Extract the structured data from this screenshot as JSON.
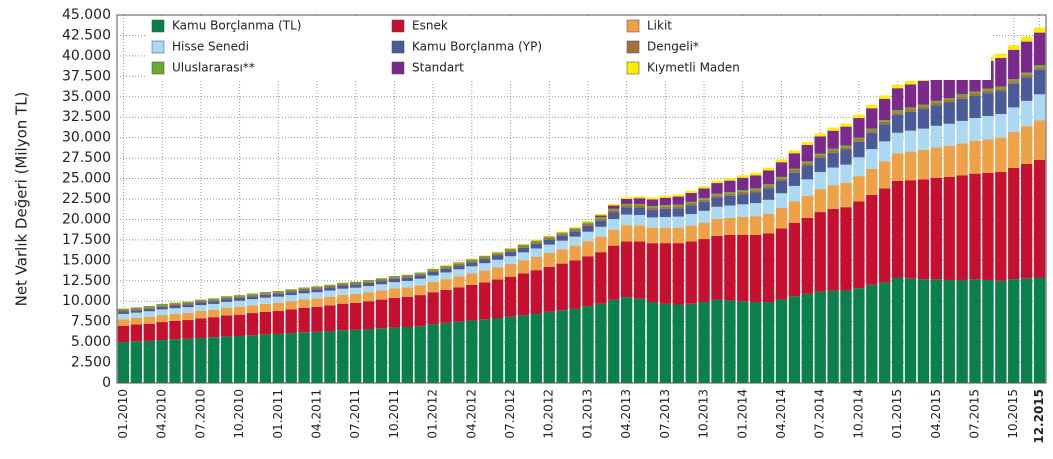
{
  "chart_data": {
    "type": "stacked_bar",
    "ylabel": "Net Varlık Değeri (Milyon TL)",
    "categories": [
      "01.2010",
      null,
      null,
      "04.2010",
      null,
      null,
      "07.2010",
      null,
      null,
      "10.2010",
      null,
      null,
      "01.2011",
      null,
      null,
      "04.2011",
      null,
      null,
      "07.2011",
      null,
      null,
      "10.2011",
      null,
      null,
      "01.2012",
      null,
      null,
      "04.2012",
      null,
      null,
      "07.2012",
      null,
      null,
      "10.2012",
      null,
      null,
      "01.2013",
      null,
      null,
      "04.2013",
      null,
      null,
      "07.2013",
      null,
      null,
      "10.2013",
      null,
      null,
      "01.2014",
      null,
      null,
      "04.2014",
      null,
      null,
      "07.2014",
      null,
      null,
      "10.2014",
      null,
      null,
      "01.2015",
      null,
      null,
      "04.2015",
      null,
      null,
      "07.2015",
      null,
      null,
      "10.2015",
      null,
      "12.2015"
    ],
    "ylim": [
      0,
      45000
    ],
    "yticks": [
      0,
      {
        "value": 2500,
        "label": "2.500"
      },
      {
        "value": 5000,
        "label": "5.000"
      },
      {
        "value": 7500,
        "label": "7.500"
      },
      {
        "value": 10000,
        "label": "10.000"
      },
      {
        "value": 12500,
        "label": "12.500"
      },
      {
        "value": 15000,
        "label": "15.000"
      },
      {
        "value": 17500,
        "label": "17.500"
      },
      {
        "value": 20000,
        "label": "20.000"
      },
      {
        "value": 22500,
        "label": "22.500"
      },
      {
        "value": 25000,
        "label": "25.000"
      },
      {
        "value": 27500,
        "label": "27.500"
      },
      {
        "value": 30000,
        "label": "30.000"
      },
      {
        "value": 32500,
        "label": "32.500"
      },
      {
        "value": 35000,
        "label": "35.000"
      },
      {
        "value": 37500,
        "label": "37.500"
      },
      {
        "value": 40000,
        "label": "40.000"
      },
      {
        "value": 42500,
        "label": "42.500"
      },
      {
        "value": 45000,
        "label": "45.000"
      }
    ],
    "grid": true,
    "series": [
      {
        "name": "Kamu Borçlanma (TL)",
        "color": "#0b7f4c",
        "values": [
          5000,
          5100,
          5150,
          5250,
          5350,
          5400,
          5500,
          5600,
          5700,
          5750,
          5850,
          5950,
          6000,
          6100,
          6200,
          6250,
          6350,
          6450,
          6500,
          6600,
          6700,
          6800,
          6850,
          6950,
          7200,
          7350,
          7500,
          7650,
          7800,
          7950,
          8100,
          8300,
          8500,
          8700,
          8900,
          9100,
          9400,
          9700,
          10200,
          10500,
          10300,
          9900,
          9700,
          9600,
          9700,
          9900,
          10200,
          10100,
          10000,
          9900,
          9900,
          10200,
          10600,
          10900,
          11200,
          11300,
          11300,
          11600,
          12000,
          12300,
          12900,
          12800,
          12700,
          12700,
          12600,
          12600,
          12700,
          12600,
          12500,
          12700,
          12800,
          12900
        ]
      },
      {
        "name": "Esnek",
        "color": "#c6102f",
        "values": [
          2000,
          2050,
          2100,
          2200,
          2250,
          2300,
          2400,
          2450,
          2550,
          2600,
          2700,
          2750,
          2800,
          2900,
          3000,
          3050,
          3150,
          3250,
          3300,
          3400,
          3500,
          3600,
          3700,
          3800,
          3900,
          4050,
          4200,
          4350,
          4500,
          4700,
          4900,
          5100,
          5300,
          5500,
          5700,
          5900,
          6100,
          6300,
          6600,
          6800,
          7000,
          7200,
          7400,
          7500,
          7600,
          7700,
          7800,
          8000,
          8100,
          8200,
          8400,
          8700,
          9000,
          9300,
          9700,
          10000,
          10200,
          10600,
          11000,
          11500,
          11800,
          12000,
          12200,
          12400,
          12600,
          12800,
          12900,
          13100,
          13300,
          13600,
          14000,
          14400
        ]
      },
      {
        "name": "Likit",
        "color": "#eea146",
        "values": [
          800,
          800,
          820,
          850,
          850,
          870,
          900,
          900,
          920,
          950,
          950,
          980,
          1000,
          1000,
          1020,
          1050,
          1050,
          1080,
          1100,
          1100,
          1120,
          1150,
          1150,
          1200,
          1250,
          1300,
          1350,
          1400,
          1450,
          1500,
          1550,
          1600,
          1650,
          1700,
          1750,
          1800,
          1850,
          1900,
          1950,
          2000,
          1950,
          1900,
          1900,
          1900,
          1950,
          2000,
          2050,
          2100,
          2200,
          2300,
          2400,
          2500,
          2600,
          2700,
          2800,
          2900,
          3000,
          3100,
          3200,
          3300,
          3400,
          3500,
          3600,
          3700,
          3800,
          3900,
          4000,
          4100,
          4200,
          4400,
          4600,
          4800
        ]
      },
      {
        "name": "Hisse Senedi",
        "color": "#acd9f2",
        "values": [
          650,
          650,
          700,
          700,
          700,
          700,
          720,
          720,
          750,
          750,
          750,
          750,
          750,
          750,
          750,
          750,
          750,
          750,
          750,
          750,
          750,
          780,
          780,
          800,
          800,
          820,
          850,
          870,
          900,
          920,
          950,
          970,
          1000,
          1020,
          1050,
          1100,
          1150,
          1200,
          1300,
          1300,
          1300,
          1250,
          1300,
          1350,
          1400,
          1450,
          1500,
          1500,
          1550,
          1600,
          1700,
          1800,
          1900,
          2000,
          2100,
          2150,
          2200,
          2300,
          2400,
          2450,
          2500,
          2550,
          2600,
          2650,
          2700,
          2750,
          2800,
          2850,
          2900,
          3000,
          3100,
          3200
        ]
      },
      {
        "name": "Kamu Borçlanma (YP)",
        "color": "#4a5b97",
        "values": [
          300,
          300,
          300,
          310,
          320,
          320,
          330,
          330,
          340,
          340,
          350,
          350,
          350,
          360,
          360,
          370,
          370,
          380,
          380,
          390,
          390,
          400,
          400,
          410,
          420,
          440,
          460,
          480,
          500,
          520,
          540,
          560,
          580,
          600,
          620,
          650,
          700,
          750,
          800,
          850,
          900,
          950,
          1000,
          1000,
          1050,
          1100,
          1150,
          1200,
          1250,
          1300,
          1400,
          1500,
          1600,
          1700,
          1750,
          1800,
          1850,
          1900,
          2000,
          2100,
          2200,
          2300,
          2400,
          2500,
          2600,
          2700,
          2700,
          2800,
          2800,
          2900,
          2900,
          3000
        ]
      },
      {
        "name": "Dengeli*",
        "color": "#a3703f",
        "values": [
          200,
          200,
          200,
          200,
          200,
          200,
          200,
          200,
          200,
          200,
          200,
          200,
          200,
          200,
          200,
          200,
          200,
          200,
          200,
          200,
          200,
          200,
          200,
          200,
          220,
          220,
          220,
          220,
          220,
          220,
          220,
          220,
          220,
          220,
          220,
          220,
          250,
          250,
          250,
          250,
          250,
          250,
          250,
          250,
          250,
          250,
          250,
          250,
          280,
          280,
          280,
          280,
          280,
          280,
          280,
          280,
          280,
          280,
          280,
          280,
          300,
          300,
          300,
          300,
          300,
          300,
          300,
          300,
          300,
          300,
          300,
          300
        ]
      },
      {
        "name": "Uluslararası**",
        "color": "#6cab2c",
        "values": [
          150,
          150,
          150,
          150,
          150,
          150,
          150,
          150,
          150,
          150,
          150,
          150,
          150,
          150,
          150,
          150,
          150,
          150,
          150,
          150,
          150,
          150,
          150,
          150,
          170,
          170,
          170,
          170,
          170,
          170,
          170,
          170,
          170,
          170,
          170,
          170,
          200,
          200,
          200,
          200,
          200,
          200,
          200,
          200,
          200,
          200,
          200,
          200,
          220,
          220,
          220,
          220,
          220,
          220,
          220,
          220,
          220,
          220,
          220,
          220,
          250,
          250,
          250,
          250,
          250,
          250,
          250,
          250,
          250,
          250,
          250,
          250
        ]
      },
      {
        "name": "Standart",
        "color": "#7b2a8b",
        "values": [
          0,
          0,
          0,
          0,
          0,
          0,
          0,
          0,
          0,
          0,
          0,
          0,
          0,
          0,
          0,
          0,
          0,
          0,
          0,
          0,
          0,
          0,
          0,
          0,
          0,
          0,
          0,
          0,
          0,
          0,
          0,
          0,
          0,
          0,
          0,
          0,
          0,
          200,
          400,
          600,
          700,
          800,
          900,
          1000,
          1100,
          1200,
          1300,
          1400,
          1500,
          1600,
          1700,
          1800,
          1900,
          2000,
          2100,
          2200,
          2300,
          2400,
          2500,
          2600,
          2700,
          2800,
          2900,
          3000,
          3100,
          3200,
          3300,
          3400,
          3500,
          3600,
          3800,
          4000
        ]
      },
      {
        "name": "Kıymetli Maden",
        "color": "#ffec00",
        "values": [
          0,
          0,
          0,
          0,
          0,
          0,
          0,
          0,
          0,
          0,
          0,
          0,
          0,
          0,
          0,
          0,
          0,
          0,
          0,
          0,
          0,
          0,
          0,
          0,
          50,
          50,
          60,
          60,
          70,
          70,
          80,
          80,
          90,
          90,
          100,
          100,
          150,
          180,
          200,
          220,
          230,
          240,
          250,
          260,
          270,
          280,
          290,
          300,
          310,
          320,
          330,
          340,
          350,
          360,
          370,
          380,
          390,
          400,
          410,
          420,
          430,
          440,
          450,
          460,
          470,
          480,
          500,
          520,
          540,
          560,
          580,
          600
        ]
      }
    ]
  }
}
